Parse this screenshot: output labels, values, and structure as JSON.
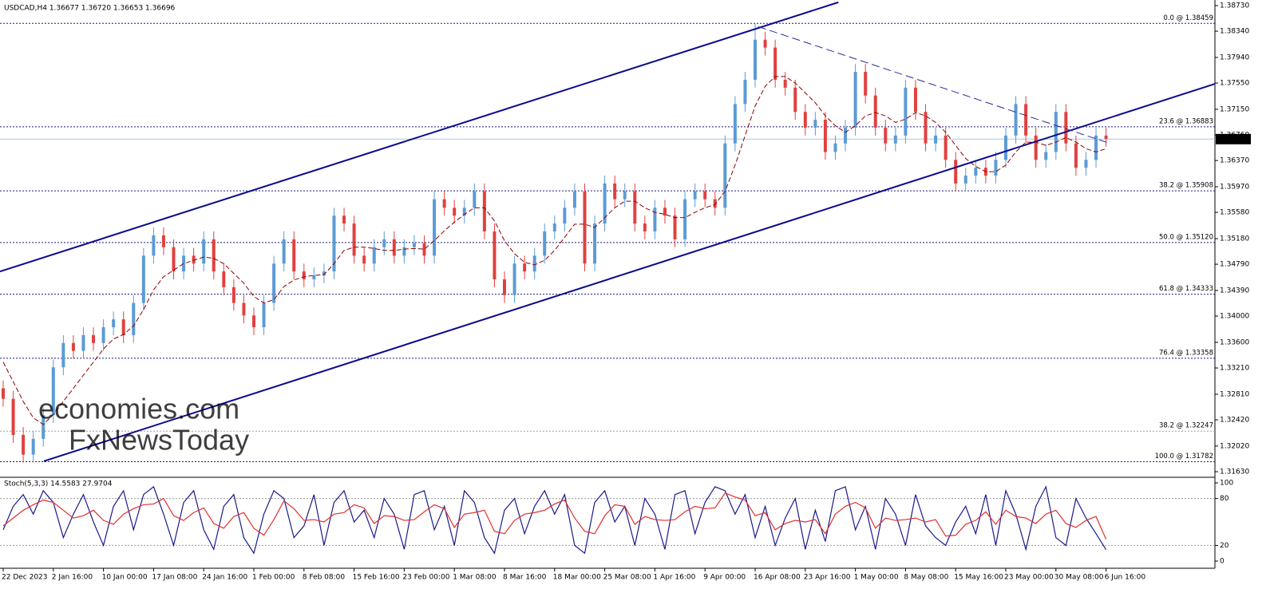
{
  "chart_data": [
    {
      "type": "candlestick",
      "title": "USDCAD,H4  1.36677 1.36720 1.36653 1.36696",
      "watermark": [
        "economies.com",
        "FxNewsToday"
      ],
      "categories": [
        "22 Dec 2023",
        null,
        null,
        null,
        null,
        "2 Jan 16:00",
        null,
        null,
        null,
        null,
        "10 Jan 00:00",
        null,
        null,
        null,
        null,
        "17 Jan 08:00",
        null,
        null,
        null,
        null,
        "24 Jan 16:00",
        null,
        null,
        null,
        null,
        "1 Feb 00:00",
        null,
        null,
        null,
        null,
        "8 Feb 08:00",
        null,
        null,
        null,
        null,
        "15 Feb 16:00",
        null,
        null,
        null,
        null,
        "23 Feb 00:00",
        null,
        null,
        null,
        null,
        "1 Mar 08:00",
        null,
        null,
        null,
        null,
        "8 Mar 16:00",
        null,
        null,
        null,
        null,
        "18 Mar 00:00",
        null,
        null,
        null,
        null,
        "25 Mar 08:00",
        null,
        null,
        null,
        null,
        "1 Apr 16:00",
        null,
        null,
        null,
        null,
        "9 Apr 00:00",
        null,
        null,
        null,
        null,
        "16 Apr 08:00",
        null,
        null,
        null,
        null,
        "23 Apr 16:00",
        null,
        null,
        null,
        null,
        "1 May 00:00",
        null,
        null,
        null,
        null,
        "8 May 08:00",
        null,
        null,
        null,
        null,
        "15 May 16:00",
        null,
        null,
        null,
        null,
        "23 May 00:00",
        null,
        null,
        null,
        null,
        "30 May 08:00",
        null,
        null,
        null,
        null,
        "6 Jun 16:00"
      ],
      "open": [
        1.329,
        1.3274,
        1.3219,
        1.3189,
        1.3213,
        1.3249,
        1.3322,
        1.3359,
        1.3347,
        1.3371,
        1.3359,
        1.3383,
        1.3395,
        1.3371,
        1.342,
        1.3492,
        1.3523,
        1.3505,
        1.3468,
        1.3492,
        1.348,
        1.3517,
        1.3468,
        1.3444,
        1.342,
        1.3401,
        1.3383,
        1.342,
        1.348,
        1.3517,
        1.3468,
        1.3456,
        1.3462,
        1.3468,
        1.3553,
        1.3541,
        1.3492,
        1.348,
        1.3505,
        1.3517,
        1.3492,
        1.3505,
        1.3511,
        1.3492,
        1.3578,
        1.3565,
        1.3553,
        1.3565,
        1.359,
        1.3529,
        1.3456,
        1.3432,
        1.348,
        1.3468,
        1.3492,
        1.3529,
        1.3541,
        1.3565,
        1.359,
        1.348,
        1.3541,
        1.3602,
        1.3578,
        1.359,
        1.3541,
        1.3529,
        1.3565,
        1.3553,
        1.3517,
        1.3578,
        1.359,
        1.3578,
        1.3565,
        1.3663,
        1.3723,
        1.376,
        1.3821,
        1.3809,
        1.376,
        1.3748,
        1.3711,
        1.3687,
        1.3699,
        1.365,
        1.3663,
        1.3687,
        1.3772,
        1.3736,
        1.3687,
        1.3663,
        1.3675,
        1.3748,
        1.3711,
        1.3663,
        1.3675,
        1.3638,
        1.3602,
        1.3614,
        1.3626,
        1.3614,
        1.3638,
        1.3675,
        1.3723,
        1.3675,
        1.3638,
        1.365,
        1.3711,
        1.3663,
        1.3626,
        1.3638,
        1.3675
      ],
      "high": [
        1.3302,
        1.3286,
        1.3231,
        1.3225,
        1.3261,
        1.3334,
        1.3371,
        1.3371,
        1.3383,
        1.3383,
        1.3395,
        1.3407,
        1.3407,
        1.3432,
        1.3504,
        1.3535,
        1.3535,
        1.3517,
        1.3504,
        1.3504,
        1.3529,
        1.3529,
        1.348,
        1.3456,
        1.3432,
        1.3413,
        1.3432,
        1.3492,
        1.3529,
        1.3529,
        1.348,
        1.3474,
        1.348,
        1.3565,
        1.3565,
        1.3553,
        1.3504,
        1.3517,
        1.3529,
        1.3529,
        1.3517,
        1.3523,
        1.3523,
        1.359,
        1.359,
        1.3577,
        1.3577,
        1.3602,
        1.3602,
        1.3541,
        1.3468,
        1.3492,
        1.3492,
        1.3504,
        1.3541,
        1.3553,
        1.3577,
        1.3602,
        1.3602,
        1.3553,
        1.3614,
        1.3614,
        1.3602,
        1.3602,
        1.3553,
        1.3577,
        1.3577,
        1.3565,
        1.359,
        1.3602,
        1.3602,
        1.359,
        1.3675,
        1.3735,
        1.3772,
        1.3846,
        1.3833,
        1.3821,
        1.3772,
        1.376,
        1.3723,
        1.3711,
        1.3711,
        1.3675,
        1.3699,
        1.3784,
        1.3784,
        1.3748,
        1.3699,
        1.3687,
        1.376,
        1.376,
        1.3723,
        1.3687,
        1.3687,
        1.365,
        1.3626,
        1.3638,
        1.3638,
        1.365,
        1.3687,
        1.3735,
        1.3735,
        1.3687,
        1.3662,
        1.3723,
        1.3723,
        1.3675,
        1.365,
        1.3687,
        1.3687
      ],
      "low": [
        1.3262,
        1.3207,
        1.3177,
        1.3177,
        1.3201,
        1.3237,
        1.331,
        1.3335,
        1.3335,
        1.3347,
        1.3347,
        1.3371,
        1.3359,
        1.3359,
        1.3408,
        1.348,
        1.3493,
        1.3456,
        1.3456,
        1.3468,
        1.3468,
        1.3456,
        1.3432,
        1.3408,
        1.3389,
        1.3371,
        1.3371,
        1.3408,
        1.3468,
        1.3456,
        1.3444,
        1.3444,
        1.345,
        1.3456,
        1.3529,
        1.348,
        1.3468,
        1.3468,
        1.3493,
        1.348,
        1.348,
        1.3493,
        1.348,
        1.348,
        1.3553,
        1.3541,
        1.3541,
        1.3553,
        1.3517,
        1.3444,
        1.342,
        1.342,
        1.3456,
        1.3456,
        1.348,
        1.3517,
        1.3529,
        1.3553,
        1.3468,
        1.3468,
        1.3529,
        1.3566,
        1.3566,
        1.3529,
        1.3517,
        1.3517,
        1.3541,
        1.3505,
        1.3505,
        1.3566,
        1.3566,
        1.3553,
        1.3553,
        1.3651,
        1.3711,
        1.3748,
        1.3797,
        1.3748,
        1.3736,
        1.3699,
        1.3675,
        1.3675,
        1.3638,
        1.3638,
        1.3651,
        1.3675,
        1.3724,
        1.3675,
        1.3651,
        1.3651,
        1.3663,
        1.3699,
        1.3651,
        1.3651,
        1.3626,
        1.359,
        1.359,
        1.3602,
        1.3602,
        1.3602,
        1.3626,
        1.3663,
        1.3663,
        1.3626,
        1.3626,
        1.3638,
        1.3651,
        1.3614,
        1.3614,
        1.3626,
        1.3658
      ],
      "close": [
        1.3274,
        1.3219,
        1.3189,
        1.3213,
        1.3249,
        1.3322,
        1.3359,
        1.3347,
        1.3371,
        1.3359,
        1.3383,
        1.3395,
        1.3371,
        1.342,
        1.3492,
        1.3523,
        1.3505,
        1.3468,
        1.3492,
        1.348,
        1.3517,
        1.3468,
        1.3444,
        1.342,
        1.3401,
        1.3383,
        1.342,
        1.348,
        1.3517,
        1.3468,
        1.3456,
        1.3462,
        1.3468,
        1.3553,
        1.3541,
        1.3492,
        1.348,
        1.3505,
        1.3517,
        1.3492,
        1.3505,
        1.3511,
        1.3492,
        1.3578,
        1.3565,
        1.3553,
        1.3565,
        1.359,
        1.3529,
        1.3456,
        1.3432,
        1.348,
        1.3468,
        1.3492,
        1.3529,
        1.3541,
        1.3565,
        1.359,
        1.348,
        1.3541,
        1.3602,
        1.3578,
        1.359,
        1.3541,
        1.3529,
        1.3565,
        1.3553,
        1.3517,
        1.3578,
        1.359,
        1.3578,
        1.3565,
        1.3663,
        1.3723,
        1.376,
        1.3821,
        1.3809,
        1.376,
        1.3748,
        1.3711,
        1.3687,
        1.3699,
        1.365,
        1.3663,
        1.3687,
        1.3772,
        1.3736,
        1.3687,
        1.3663,
        1.3675,
        1.3748,
        1.3711,
        1.3663,
        1.3675,
        1.3638,
        1.3602,
        1.3614,
        1.3626,
        1.3614,
        1.3638,
        1.3675,
        1.3723,
        1.3675,
        1.3638,
        1.365,
        1.3711,
        1.3663,
        1.3626,
        1.3638,
        1.3675,
        1.367
      ],
      "up_color": "#5b9bd5",
      "down_color": "#e0413f",
      "ma": {
        "color": "#8b0000",
        "values": [
          1.333,
          1.33,
          1.327,
          1.3245,
          1.3235,
          1.325,
          1.327,
          1.329,
          1.331,
          1.333,
          1.335,
          1.3365,
          1.3372,
          1.3385,
          1.341,
          1.344,
          1.346,
          1.347,
          1.348,
          1.3485,
          1.349,
          1.3488,
          1.348,
          1.3465,
          1.345,
          1.343,
          1.342,
          1.3425,
          1.3445,
          1.3455,
          1.346,
          1.3462,
          1.3463,
          1.348,
          1.35,
          1.3505,
          1.3505,
          1.3503,
          1.35,
          1.35,
          1.3502,
          1.3503,
          1.3502,
          1.3515,
          1.353,
          1.3543,
          1.3555,
          1.3565,
          1.3565,
          1.3545,
          1.3515,
          1.3495,
          1.3482,
          1.3478,
          1.3485,
          1.35,
          1.352,
          1.354,
          1.354,
          1.3535,
          1.355,
          1.3565,
          1.3575,
          1.3575,
          1.3565,
          1.3558,
          1.3555,
          1.355,
          1.355,
          1.3558,
          1.3565,
          1.357,
          1.359,
          1.363,
          1.3675,
          1.372,
          1.375,
          1.3765,
          1.3765,
          1.3755,
          1.374,
          1.3725,
          1.3705,
          1.369,
          1.368,
          1.369,
          1.3705,
          1.371,
          1.3705,
          1.3695,
          1.37,
          1.371,
          1.3705,
          1.3695,
          1.368,
          1.366,
          1.364,
          1.3628,
          1.362,
          1.362,
          1.363,
          1.365,
          1.3665,
          1.3665,
          1.366,
          1.3665,
          1.3672,
          1.3665,
          1.3655,
          1.365,
          1.3655
        ]
      },
      "trendlines": [
        {
          "color": "#0a0a8c",
          "style": "solid",
          "points": [
            [
              -0.32,
              1.3468
            ],
            [
              83.3,
              1.3878
            ]
          ]
        },
        {
          "color": "#0a0a8c",
          "style": "solid",
          "points": [
            [
              4.06,
              1.3179
            ],
            [
              120.9,
              1.3754
            ]
          ]
        },
        {
          "color": "#2a2aa0",
          "style": "dashed",
          "points": [
            [
              75.3,
              1.3841
            ],
            [
              110.4,
              1.3663
            ]
          ]
        }
      ],
      "fib_levels": [
        {
          "label": "0.0 @ 1.38459",
          "value": 1.38459,
          "color": "#1a1a80"
        },
        {
          "label": "23.6 @ 1.36883",
          "value": 1.36883,
          "color": "#1a1a80"
        },
        {
          "label": "38.2 @ 1.35908",
          "value": 1.35908,
          "color": "#1a1a80"
        },
        {
          "label": "50.0 @ 1.35120",
          "value": 1.3512,
          "color": "#1a1a80"
        },
        {
          "label": "61.8 @ 1.34333",
          "value": 1.34333,
          "color": "#1a1a80"
        },
        {
          "label": "76.4 @ 1.33358",
          "value": 1.33358,
          "color": "#1a1a80"
        },
        {
          "label": "38.2 @ 1.32247",
          "value": 1.32247,
          "color": "#a0a0a0"
        },
        {
          "label": "100.0 @ 1.31782",
          "value": 1.31782,
          "color": "#1a1a80"
        }
      ],
      "current_price": 1.36696,
      "ylim": [
        1.31557,
        1.38815
      ],
      "yticks": [
        {
          "value": 1.3873,
          "label": "1.38730"
        },
        {
          "value": 1.3834,
          "label": "1.38340"
        },
        {
          "value": 1.3794,
          "label": "1.37940"
        },
        {
          "value": 1.3755,
          "label": "1.37550"
        },
        {
          "value": 1.3715,
          "label": "1.37150"
        },
        {
          "value": 1.3676,
          "label": "1.36760"
        },
        {
          "value": 1.3637,
          "label": "1.36370"
        },
        {
          "value": 1.3597,
          "label": "1.35970"
        },
        {
          "value": 1.3558,
          "label": "1.35580"
        },
        {
          "value": 1.3518,
          "label": "1.35180"
        },
        {
          "value": 1.3479,
          "label": "1.34790"
        },
        {
          "value": 1.3439,
          "label": "1.34390"
        },
        {
          "value": 1.34,
          "label": "1.34000"
        },
        {
          "value": 1.336,
          "label": "1.33600"
        },
        {
          "value": 1.3321,
          "label": "1.33210"
        },
        {
          "value": 1.3281,
          "label": "1.32810"
        },
        {
          "value": 1.3242,
          "label": "1.32420"
        },
        {
          "value": 1.3202,
          "label": "1.32020"
        },
        {
          "value": 1.3163,
          "label": "1.31630"
        }
      ]
    },
    {
      "type": "line",
      "title": "Stoch(5,3,3) 14.5583 27.9704",
      "series": [
        {
          "color": "#1a1a8c",
          "values": [
            40,
            70,
            85,
            60,
            90,
            75,
            30,
            60,
            85,
            50,
            20,
            70,
            90,
            40,
            85,
            95,
            60,
            20,
            75,
            90,
            40,
            15,
            70,
            85,
            30,
            10,
            60,
            90,
            80,
            30,
            45,
            85,
            20,
            75,
            90,
            50,
            65,
            30,
            80,
            60,
            15,
            85,
            90,
            40,
            70,
            20,
            90,
            75,
            30,
            10,
            65,
            80,
            35,
            70,
            90,
            60,
            85,
            20,
            10,
            75,
            90,
            50,
            70,
            20,
            80,
            60,
            15,
            85,
            90,
            35,
            75,
            95,
            90,
            60,
            85,
            30,
            70,
            20,
            55,
            80,
            15,
            65,
            25,
            90,
            95,
            40,
            70,
            15,
            80,
            60,
            20,
            85,
            45,
            30,
            20,
            50,
            70,
            35,
            85,
            20,
            90,
            60,
            15,
            70,
            95,
            30,
            20,
            80,
            55,
            35,
            14.5583
          ]
        },
        {
          "color": "#e0302e",
          "values": [
            45,
            55,
            65,
            72,
            78,
            75,
            65,
            55,
            58,
            65,
            52,
            47,
            60,
            67,
            72,
            73,
            80,
            58,
            52,
            62,
            68,
            48,
            42,
            57,
            62,
            42,
            33,
            53,
            77,
            67,
            52,
            53,
            50,
            60,
            62,
            72,
            68,
            48,
            58,
            57,
            52,
            53,
            63,
            72,
            67,
            43,
            60,
            62,
            65,
            38,
            35,
            52,
            60,
            62,
            65,
            73,
            78,
            55,
            38,
            35,
            58,
            72,
            70,
            47,
            57,
            53,
            52,
            53,
            63,
            70,
            67,
            68,
            87,
            82,
            78,
            58,
            62,
            40,
            48,
            52,
            50,
            53,
            35,
            60,
            70,
            75,
            68,
            42,
            55,
            52,
            53,
            55,
            50,
            53,
            32,
            33,
            47,
            52,
            63,
            47,
            65,
            57,
            55,
            48,
            60,
            65,
            48,
            43,
            52,
            57,
            27.9704
          ]
        }
      ],
      "levels": [
        20,
        80
      ],
      "ylim": [
        0,
        100
      ],
      "yticks": [
        0,
        20,
        80,
        100
      ]
    }
  ]
}
